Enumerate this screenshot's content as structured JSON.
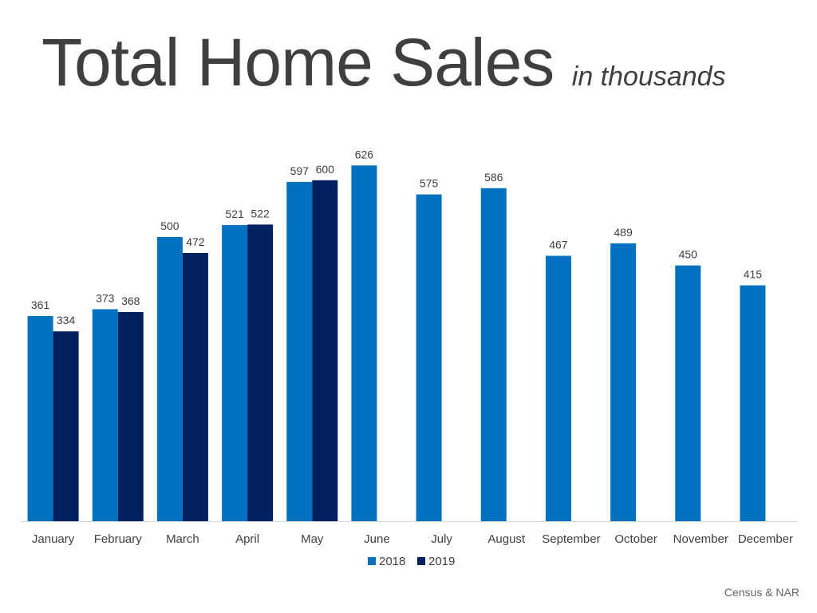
{
  "header": {
    "title": "Total Home Sales",
    "subtitle": "in thousands"
  },
  "footer": {
    "source": "Census & NAR"
  },
  "colors": {
    "series_2018": "#0070c0",
    "series_2019": "#002060",
    "axis": "#d9d9d9",
    "label": "#404040"
  },
  "chart_data": {
    "type": "bar",
    "title": "Total Home Sales",
    "subtitle": "in thousands",
    "xlabel": "",
    "ylabel": "",
    "ylim": [
      0,
      700
    ],
    "grid": false,
    "legend": "bottom-center",
    "categories": [
      "January",
      "February",
      "March",
      "April",
      "May",
      "June",
      "July",
      "August",
      "September",
      "October",
      "November",
      "December"
    ],
    "series": [
      {
        "name": "2018",
        "values": [
          361,
          373,
          500,
          521,
          597,
          626,
          575,
          586,
          467,
          489,
          450,
          415
        ]
      },
      {
        "name": "2019",
        "values": [
          334,
          368,
          472,
          522,
          600,
          null,
          null,
          null,
          null,
          null,
          null,
          null
        ]
      }
    ]
  }
}
